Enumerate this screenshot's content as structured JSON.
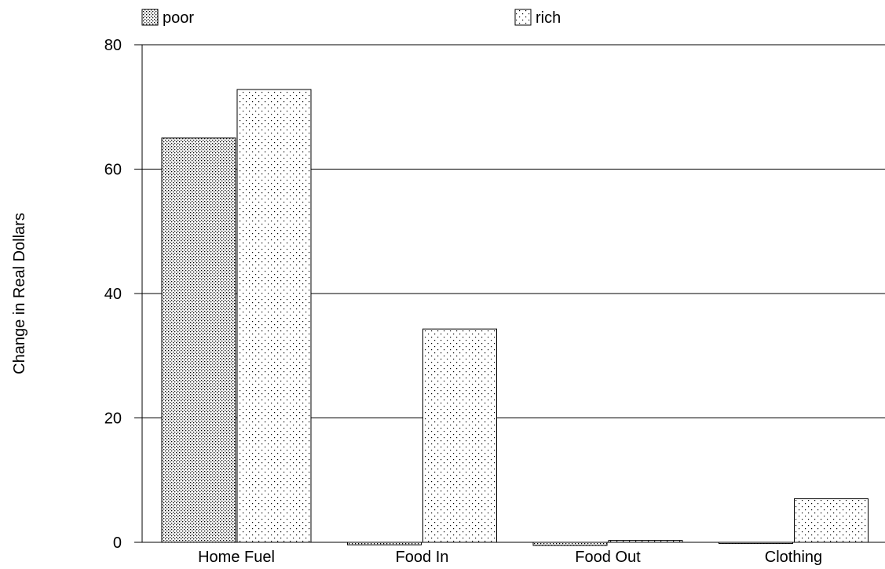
{
  "chart_data": {
    "type": "bar",
    "title": "",
    "xlabel": "",
    "ylabel": "Change in Real Dollars",
    "ylim": [
      0,
      80
    ],
    "yticks": [
      0,
      20,
      40,
      60,
      80
    ],
    "grid": true,
    "legend_position": "top",
    "categories": [
      "Home Fuel",
      "Food In",
      "Food Out",
      "Clothing"
    ],
    "series": [
      {
        "name": "poor",
        "pattern": "dense-dots",
        "values": [
          65,
          -0.4,
          -0.5,
          -0.2
        ]
      },
      {
        "name": "rich",
        "pattern": "sparse-dots",
        "values": [
          72.8,
          34.3,
          0.3,
          7.0
        ]
      }
    ]
  }
}
